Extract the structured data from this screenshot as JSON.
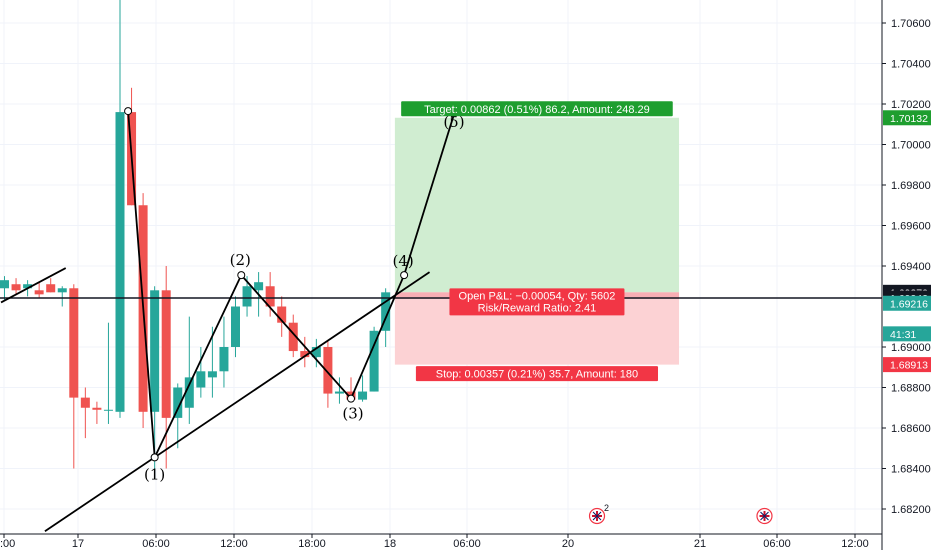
{
  "chart_data": {
    "type": "candlestick",
    "instrument_note": "",
    "y_axis": {
      "ticks": [
        "1.70600",
        "1.70400",
        "1.70200",
        "1.70000",
        "1.69800",
        "1.69600",
        "1.69400",
        "1.69000",
        "1.68800",
        "1.68600",
        "1.68400",
        "1.68200"
      ],
      "ylim": [
        1.6812,
        1.7075
      ]
    },
    "x_axis": {
      "ticks": [
        ":00",
        "17",
        "06:00",
        "12:00",
        "18:00",
        "18",
        "06:00",
        "20",
        "21",
        "06:00",
        "12:00"
      ]
    },
    "candles": [
      {
        "o": 1.6929,
        "h": 1.6935,
        "l": 1.6923,
        "c": 1.6933
      },
      {
        "o": 1.6931,
        "h": 1.6934,
        "l": 1.6926,
        "c": 1.6928
      },
      {
        "o": 1.6929,
        "h": 1.6933,
        "l": 1.6925,
        "c": 1.6931
      },
      {
        "o": 1.6928,
        "h": 1.6932,
        "l": 1.6924,
        "c": 1.6926
      },
      {
        "o": 1.6931,
        "h": 1.6934,
        "l": 1.6927,
        "c": 1.6927
      },
      {
        "o": 1.6927,
        "h": 1.693,
        "l": 1.692,
        "c": 1.6929
      },
      {
        "o": 1.6929,
        "h": 1.6931,
        "l": 1.684,
        "c": 1.6875
      },
      {
        "o": 1.6875,
        "h": 1.688,
        "l": 1.6855,
        "c": 1.687
      },
      {
        "o": 1.687,
        "h": 1.6873,
        "l": 1.6862,
        "c": 1.6869
      },
      {
        "o": 1.6869,
        "h": 1.6912,
        "l": 1.6862,
        "c": 1.6869
      },
      {
        "o": 1.6868,
        "h": 1.7075,
        "l": 1.6865,
        "c": 1.7016
      },
      {
        "o": 1.7016,
        "h": 1.7028,
        "l": 1.697,
        "c": 1.697
      },
      {
        "o": 1.697,
        "h": 1.6976,
        "l": 1.686,
        "c": 1.6868
      },
      {
        "o": 1.6868,
        "h": 1.693,
        "l": 1.6835,
        "c": 1.6928
      },
      {
        "o": 1.6928,
        "h": 1.694,
        "l": 1.684,
        "c": 1.6865
      },
      {
        "o": 1.6865,
        "h": 1.6882,
        "l": 1.685,
        "c": 1.688
      },
      {
        "o": 1.687,
        "h": 1.6915,
        "l": 1.6862,
        "c": 1.6885
      },
      {
        "o": 1.688,
        "h": 1.69,
        "l": 1.6875,
        "c": 1.6888
      },
      {
        "o": 1.6885,
        "h": 1.691,
        "l": 1.6875,
        "c": 1.6888
      },
      {
        "o": 1.6888,
        "h": 1.6915,
        "l": 1.688,
        "c": 1.69
      },
      {
        "o": 1.69,
        "h": 1.6925,
        "l": 1.6895,
        "c": 1.692
      },
      {
        "o": 1.692,
        "h": 1.6935,
        "l": 1.6915,
        "c": 1.693
      },
      {
        "o": 1.6928,
        "h": 1.6937,
        "l": 1.6915,
        "c": 1.6932
      },
      {
        "o": 1.693,
        "h": 1.6937,
        "l": 1.6915,
        "c": 1.692
      },
      {
        "o": 1.692,
        "h": 1.6925,
        "l": 1.6905,
        "c": 1.6912
      },
      {
        "o": 1.6912,
        "h": 1.6916,
        "l": 1.6895,
        "c": 1.6898
      },
      {
        "o": 1.6898,
        "h": 1.6905,
        "l": 1.689,
        "c": 1.6895
      },
      {
        "o": 1.6895,
        "h": 1.6904,
        "l": 1.689,
        "c": 1.69
      },
      {
        "o": 1.69,
        "h": 1.6903,
        "l": 1.687,
        "c": 1.6877
      },
      {
        "o": 1.6877,
        "h": 1.6885,
        "l": 1.6872,
        "c": 1.6878
      },
      {
        "o": 1.6878,
        "h": 1.6885,
        "l": 1.6873,
        "c": 1.6874
      },
      {
        "o": 1.6874,
        "h": 1.6886,
        "l": 1.6873,
        "c": 1.6878
      },
      {
        "o": 1.6878,
        "h": 1.691,
        "l": 1.6878,
        "c": 1.6908
      },
      {
        "o": 1.6908,
        "h": 1.6929,
        "l": 1.69,
        "c": 1.6927
      }
    ],
    "waves": [
      {
        "label": "(1)",
        "price": 1.68455,
        "candle": 13
      },
      {
        "label": "(2)",
        "price": 1.69355,
        "candle": 20.5
      },
      {
        "label": "(3)",
        "price": 1.68745,
        "candle": 30
      },
      {
        "label": "(4)",
        "price": 1.69355,
        "candle": 34.6
      },
      {
        "label": "(5)",
        "price": 1.70165,
        "candle": 39
      }
    ],
    "first_pivot": {
      "price": 1.70165,
      "candle": 10.7
    },
    "trendlines": [
      {
        "from": {
          "candle": -0.3,
          "price": 1.6922
        },
        "to": {
          "candle": 5.3,
          "price": 1.6939
        }
      },
      {
        "from": {
          "candle": 3.5,
          "price": 1.6809
        },
        "to": {
          "candle": 36.8,
          "price": 1.6937
        }
      }
    ],
    "horizontal_line": 1.69242,
    "position": {
      "entry": 1.6927,
      "target": 1.70132,
      "stop": 1.68913,
      "from_candle": 33.8,
      "to_candle": 58.4,
      "target_label": "Target: 0.00862 (0.51%) 86.2, Amount: 248.29",
      "stop_label": "Stop: 0.00357 (0.21%) 35.7, Amount: 180",
      "pnl_label": "Open P&L: −0.00054, Qty: 5602",
      "rr_label": "Risk/Reward Ratio: 2.41"
    },
    "price_badges": [
      {
        "value": "1.70132",
        "price": 1.70132,
        "color": "#1e9e2f"
      },
      {
        "value": "1.69270",
        "price": 1.6927,
        "color": "#131722"
      },
      {
        "value": "1.69242",
        "price": 1.69242,
        "color": "#131722"
      },
      {
        "value": "1.69216",
        "price": 1.69216,
        "color": "#26a69a"
      },
      {
        "value": "41:31",
        "price": 1.69065,
        "color": "#26a69a"
      },
      {
        "value": "1.68913",
        "price": 1.68913,
        "color": "#f23645"
      }
    ],
    "event_markers": [
      {
        "count": "2",
        "candle": 51.3
      },
      {
        "count": "",
        "candle": 65.8
      }
    ],
    "colors": {
      "up": "#26a69a",
      "down": "#ef5350",
      "target_fill": "#cdeccf",
      "stop_fill": "#fcd0d2",
      "target_tag": "#1e9e2f",
      "stop_tag": "#f23645"
    }
  }
}
